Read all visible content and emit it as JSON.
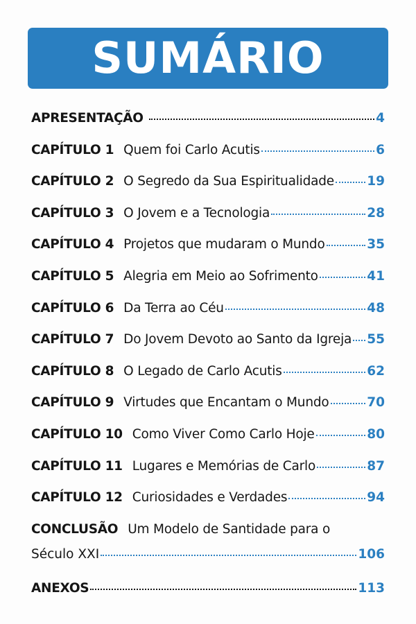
{
  "header": {
    "title": "SUMÁRIO",
    "color": "#2a7fc1"
  },
  "entries": [
    {
      "label": "APRESENTAÇÃO",
      "title": "",
      "page": "4",
      "dots": "black"
    },
    {
      "label": "CAPÍTULO 1",
      "title": "Quem foi Carlo Acutis",
      "page": "6",
      "dots": "blue"
    },
    {
      "label": "CAPÍTULO 2",
      "title": "O Segredo da Sua Espiritualidade",
      "page": "19",
      "dots": "blue"
    },
    {
      "label": "CAPÍTULO 3",
      "title": "O Jovem e a Tecnologia",
      "page": "28",
      "dots": "blue"
    },
    {
      "label": "CAPÍTULO 4",
      "title": "Projetos que mudaram o Mundo",
      "page": "35",
      "dots": "blue"
    },
    {
      "label": "CAPÍTULO 5",
      "title": "Alegria em Meio ao Sofrimento",
      "page": "41",
      "dots": "blue"
    },
    {
      "label": "CAPÍTULO 6",
      "title": "Da Terra ao Céu",
      "page": "48",
      "dots": "blue"
    },
    {
      "label": "CAPÍTULO 7",
      "title": "Do Jovem Devoto ao Santo da Igreja",
      "page": "55",
      "dots": "blue"
    },
    {
      "label": "CAPÍTULO 8",
      "title": "O Legado de Carlo Acutis",
      "page": "62",
      "dots": "blue"
    },
    {
      "label": "CAPÍTULO 9",
      "title": "Virtudes que Encantam o Mundo",
      "page": "70",
      "dots": "blue"
    },
    {
      "label": "CAPÍTULO 10",
      "title": "Como Viver Como Carlo Hoje",
      "page": "80",
      "dots": "blue"
    },
    {
      "label": "CAPÍTULO 11",
      "title": "Lugares e Memórias de Carlo",
      "page": "87",
      "dots": "blue"
    },
    {
      "label": "CAPÍTULO 12",
      "title": "Curiosidades e Verdades",
      "page": "94",
      "dots": "blue"
    }
  ],
  "conclusion": {
    "label": "CONCLUSÃO",
    "title_line1": "Um Modelo de Santidade para o",
    "title_line2": "Século XXI",
    "page": "106"
  },
  "annexes": {
    "label": "ANEXOS",
    "page": "113"
  }
}
